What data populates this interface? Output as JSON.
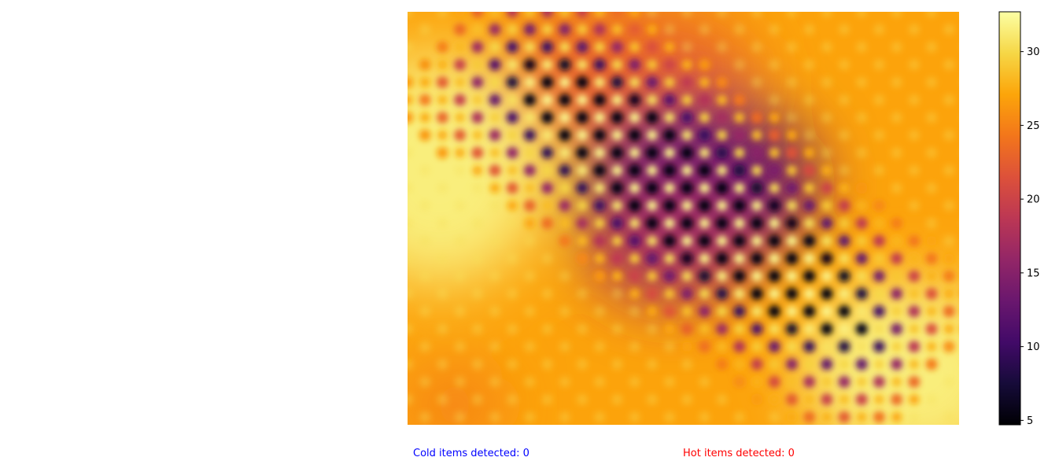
{
  "chart_data": {
    "type": "heatmap",
    "colormap": "inferno",
    "grid": false,
    "value_range": [
      4.7,
      32.7
    ],
    "colorbar": {
      "placement": "right",
      "ticks": [
        5,
        10,
        15,
        20,
        25,
        30
      ]
    },
    "field_description_values": {
      "background_level": 27,
      "warm_left_peak": 31.5,
      "warm_bottom_right_peak": 31.5,
      "cold_center_min": 5
    }
  },
  "status": {
    "cold_label": "Cold items detected: 0",
    "hot_label": "Hot items detected: 0",
    "cold_color": "#0000ff",
    "hot_color": "#ff0000"
  }
}
